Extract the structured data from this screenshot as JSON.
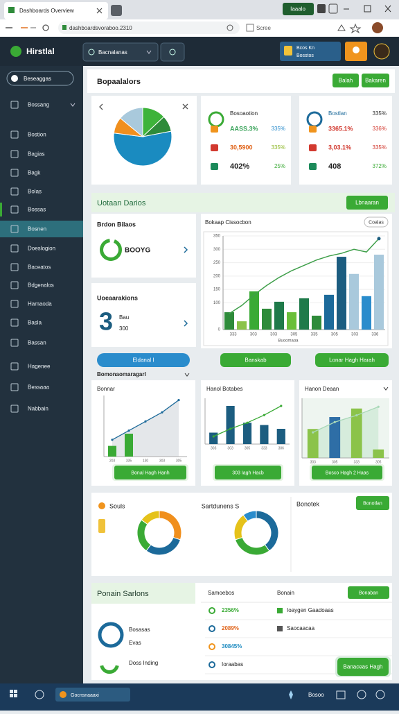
{
  "browser": {
    "tab": "Dashboards Overview",
    "profile": "Iaaalo",
    "url": "dashboardsvoraboo.2310",
    "search": "Scree"
  },
  "header": {
    "brand": "Hirstlal",
    "search": "Bacnalanas",
    "notice": [
      "Bcos Kn",
      "Bosstos"
    ]
  },
  "sidebar": {
    "search": "Beseaggas",
    "items": [
      "Bossang",
      "Bostion",
      "Bagias",
      "Bagk",
      "Bolas",
      "Bossas",
      "Bosnen",
      "Doeslogion",
      "Baceatos",
      "Bdgenalos",
      "Hamaoda",
      "Basla",
      "Bassan",
      "Hagenee",
      "Bessaaa",
      "Nabbain"
    ]
  },
  "overview": {
    "title": "Bopaalalors",
    "buttons": [
      "Balah",
      "Bakaren"
    ],
    "pie": {
      "values": [
        13,
        9,
        55,
        9,
        14
      ],
      "colors": [
        "#3db33a",
        "#2e8b3a",
        "#1a8bc0",
        "#f08f1d",
        "#a9c9dc"
      ]
    },
    "stats": [
      {
        "title": "Bosoaotion",
        "rows": [
          [
            "AASS.3%",
            "335%"
          ],
          [
            "30,5900",
            "335%"
          ],
          [
            "402%",
            "25%"
          ]
        ]
      },
      {
        "title": "Bostlan",
        "badge": "335%",
        "rows": [
          [
            "3365.1%",
            "336%"
          ],
          [
            "3,03.1%",
            "335%"
          ],
          [
            "408",
            "372%"
          ]
        ]
      }
    ]
  },
  "section": {
    "title": "Uotaan Darios",
    "button": "Lbnaaran",
    "cards": [
      {
        "title": "Brdon Bilaos",
        "value": "BOOYG"
      },
      {
        "title": "Uoeaarakions",
        "value": "3",
        "lines": [
          "Bau",
          "300"
        ]
      }
    ],
    "bar_chart": {
      "title": "Bokaap Cissocbon",
      "button": "Coalas",
      "values": [
        65,
        31,
        143,
        78,
        104,
        65,
        117,
        52,
        130,
        272,
        208,
        125,
        280
      ],
      "colors": [
        "#2e8b3a",
        "#8bc34a",
        "#3aaa35",
        "#2e8b3a",
        "#1f7a4a",
        "#6abf3a",
        "#1f7a4a",
        "#2e8b3a",
        "#1c6a9a",
        "#1c5d80",
        "#a9c9dc",
        "#2a8ccc",
        "#a9c9dc"
      ],
      "line": [
        60,
        90,
        130,
        165,
        195,
        220,
        240,
        260,
        275,
        285,
        300,
        290,
        340
      ],
      "line_color": "#3f9f4a",
      "ylim": [
        0,
        350
      ],
      "yticks": [
        0,
        100,
        150,
        200,
        250,
        300,
        350
      ],
      "xlabels": [
        "333",
        "303",
        "303",
        "305",
        "335",
        "305",
        "303",
        "336"
      ],
      "caption": "Buoomaoa"
    },
    "buttons": [
      "Eldanal I",
      "Banskab",
      "Lonar Hagh Harah"
    ],
    "subtitle": "Bomonaomaragarl",
    "minis": [
      {
        "title": "Bonnar",
        "button": "Bonal Hagh Hanh",
        "categories": [
          "203",
          "335",
          "130",
          "303",
          "305"
        ],
        "values": [
          14,
          30,
          null,
          null,
          null
        ],
        "line": [
          22,
          34,
          46,
          58,
          74
        ],
        "bar_color": "#3aaa35",
        "line_color": "#1c6a9a",
        "ylim": [
          0,
          80
        ]
      },
      {
        "title": "Hanol Botabes",
        "button": "303 Iagh Hacb",
        "categories": [
          "303",
          "303",
          "305",
          "333",
          "306"
        ],
        "values": [
          15,
          50,
          28,
          25,
          20
        ],
        "line": [
          10,
          20,
          28,
          38,
          50
        ],
        "bar_color": "#1c5d80",
        "line_color": "#3aaa35",
        "ylim": [
          0,
          60
        ]
      },
      {
        "title": "Hanon Deaan",
        "button": "Bosco Hagh 2 Haas",
        "categories": [
          "303",
          "305",
          "333",
          "305"
        ],
        "values": [
          34,
          48,
          58,
          10
        ],
        "line": [
          30,
          42,
          50,
          60
        ],
        "bar_color": "#8bc34a",
        "line_color": "#a9d8b8",
        "ylim": [
          0,
          70
        ]
      }
    ]
  },
  "donuts": {
    "titles": [
      "Souls",
      "Sartdunens S",
      "Bonotek"
    ],
    "button": "Bonotlan",
    "charts": [
      {
        "values": [
          30,
          30,
          25,
          15
        ],
        "colors": [
          "#f08f1d",
          "#1c6a9a",
          "#3aaa35",
          "#e5c21a"
        ]
      },
      {
        "values": [
          40,
          30,
          20,
          10
        ],
        "colors": [
          "#1c6a9a",
          "#3aaa35",
          "#e5c21a",
          "#2a8ccc"
        ]
      }
    ]
  },
  "table": {
    "title": "Ponain Sarlons",
    "headers": [
      "Samoebos",
      "Bonain"
    ],
    "button": "Bonaban",
    "rows": [
      [
        "2356%",
        "Ioaygen Gaadoaas"
      ],
      [
        "2089%",
        "Saocaacaa"
      ],
      [
        "30845%"
      ],
      [
        "Ioraabas"
      ]
    ],
    "card": [
      "Bosasas",
      "Evas",
      "Doss Inding"
    ],
    "action": "Banaceas Hagh"
  },
  "taskbar": {
    "app": "Gocnsnaaaxi",
    "label": "Bosoo"
  }
}
